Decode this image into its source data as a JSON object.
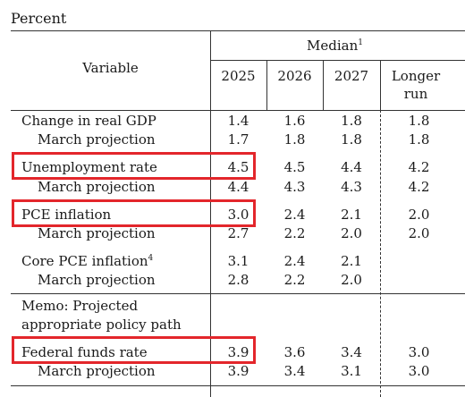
{
  "unit_label": "Percent",
  "header": {
    "variable": "Variable",
    "median": "Median",
    "median_footnote": "1",
    "years": [
      "2025",
      "2026",
      "2027"
    ],
    "longer_run_line1": "Longer",
    "longer_run_line2": "run"
  },
  "rows": [
    {
      "label": "Change in real GDP",
      "values": [
        "1.4",
        "1.6",
        "1.8",
        "1.8"
      ]
    },
    {
      "label": "March projection",
      "values": [
        "1.7",
        "1.8",
        "1.8",
        "1.8"
      ]
    },
    {
      "label": "Unemployment rate",
      "values": [
        "4.5",
        "4.5",
        "4.4",
        "4.2"
      ]
    },
    {
      "label": "March projection",
      "values": [
        "4.4",
        "4.3",
        "4.3",
        "4.2"
      ]
    },
    {
      "label": "PCE inflation",
      "values": [
        "3.0",
        "2.4",
        "2.1",
        "2.0"
      ]
    },
    {
      "label": "March projection",
      "values": [
        "2.7",
        "2.2",
        "2.0",
        "2.0"
      ]
    },
    {
      "label": "Core PCE inflation",
      "footnote": "4",
      "values": [
        "3.1",
        "2.4",
        "2.1",
        ""
      ]
    },
    {
      "label": "March projection",
      "values": [
        "2.8",
        "2.2",
        "2.0",
        ""
      ]
    }
  ],
  "memo": {
    "line1": "Memo: Projected",
    "line2": "appropriate policy path"
  },
  "policy_rows": [
    {
      "label": "Federal funds rate",
      "values": [
        "3.9",
        "3.6",
        "3.4",
        "3.0"
      ]
    },
    {
      "label": "March projection",
      "values": [
        "3.9",
        "3.4",
        "3.1",
        "3.0"
      ]
    }
  ],
  "highlight_color": "#e3262b"
}
